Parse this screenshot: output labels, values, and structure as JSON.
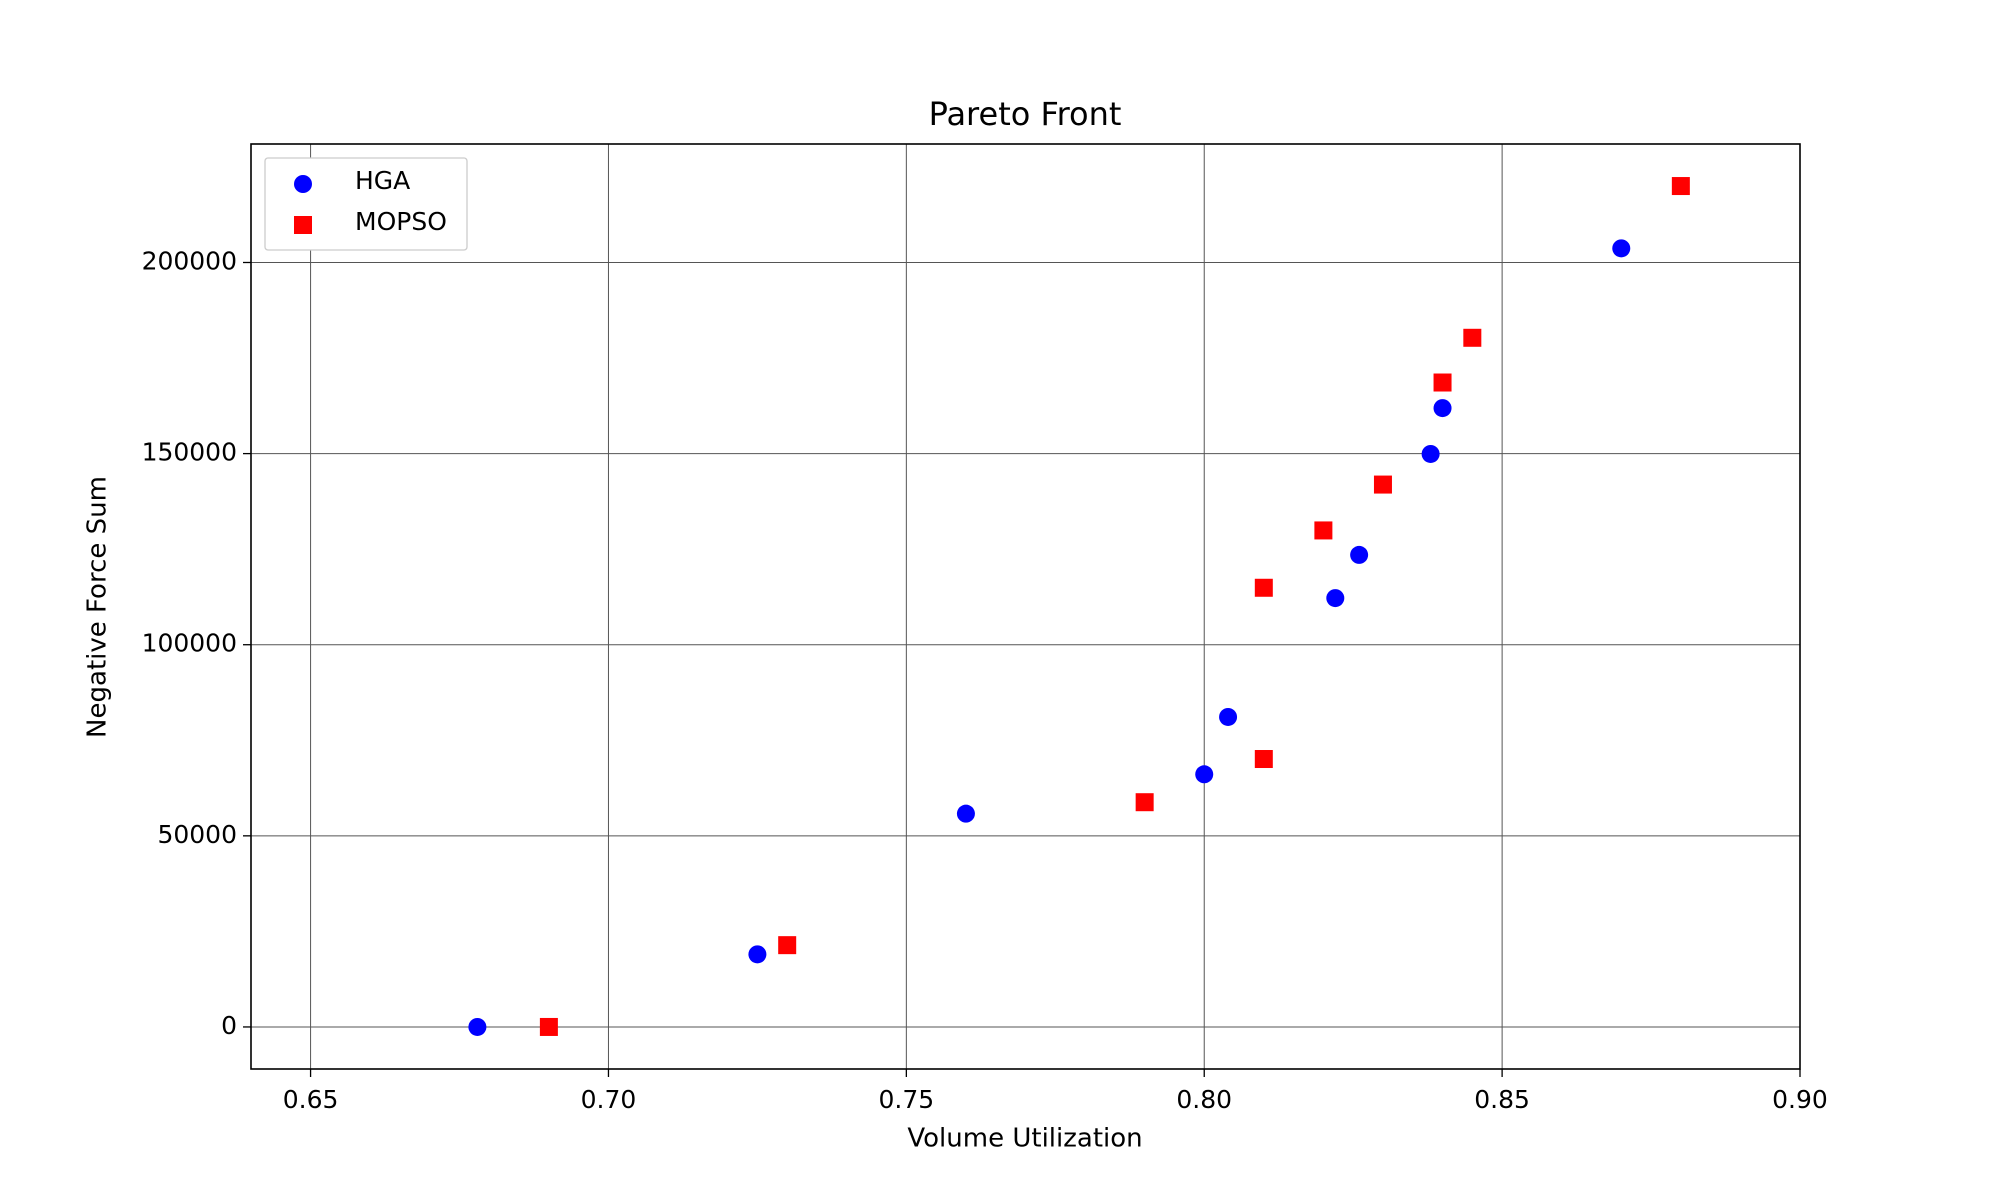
{
  "chart_data": {
    "type": "scatter",
    "title": "Pareto Front",
    "x_label": "Volume Utilization",
    "y_label": "Negative Force Sum",
    "series": [
      {
        "name": "HGA",
        "color": "#0000ff",
        "marker": "circle",
        "x": [
          0.678,
          0.725,
          0.76,
          0.8,
          0.804,
          0.822,
          0.826,
          0.838,
          0.84,
          0.87
        ],
        "values": [
          0,
          19000,
          55800,
          66100,
          81100,
          112200,
          123500,
          149900,
          161900,
          203700
        ]
      },
      {
        "name": "MOPSO",
        "color": "#ff0000",
        "marker": "square",
        "x": [
          0.69,
          0.73,
          0.79,
          0.81,
          0.81,
          0.82,
          0.83,
          0.84,
          0.845,
          0.88
        ],
        "values": [
          0,
          21400,
          58800,
          70100,
          114900,
          129900,
          141900,
          168600,
          180300,
          220000
        ]
      }
    ],
    "xlim": [
      0.64,
      0.9
    ],
    "ylim": [
      -11000,
      231000
    ],
    "xticks": [
      0.65,
      {
        "value": 0.7,
        "label": "0.70"
      },
      0.75,
      {
        "value": 0.8,
        "label": "0.80"
      },
      0.85,
      {
        "value": 0.9,
        "label": "0.90"
      }
    ],
    "yticks": [
      0,
      50000,
      100000,
      150000,
      200000
    ],
    "grid": true,
    "legend_loc": "upper left"
  }
}
